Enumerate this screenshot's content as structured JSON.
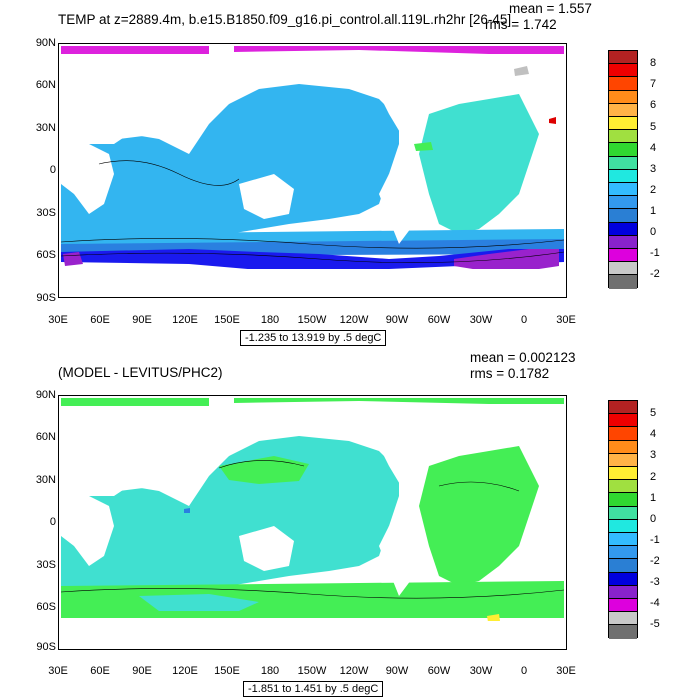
{
  "top": {
    "title": "TEMP at z=2889.4m, b.e15.B1850.f09_g16.pi_control.all.119L.rh2hr [26-45]",
    "mean_text": "mean = 1.557",
    "rms_text": "rms = 1.742",
    "range_text": "-1.235 to 13.919 by .5 degC",
    "colorbar": {
      "labels": [
        "8",
        "7",
        "6",
        "5",
        "4",
        "3",
        "2",
        "1",
        "0",
        "-1",
        "-2"
      ],
      "colors": [
        "#b22222",
        "#ee0000",
        "#ff4500",
        "#ff8c1a",
        "#ffb347",
        "#ffee33",
        "#a0e040",
        "#30d830",
        "#40e0a0",
        "#20e8e0",
        "#33bbff",
        "#3399ee",
        "#2a7fd4",
        "#0000dd",
        "#8822cc",
        "#dd00dd",
        "#c8c8c8",
        "#707070"
      ]
    }
  },
  "bottom": {
    "title": "(MODEL - LEVITUS/PHC2)",
    "mean_text": "mean = 0.002123",
    "rms_text": "rms = 0.1782",
    "range_text": "-1.851 to 1.451 by .5 degC",
    "colorbar": {
      "labels": [
        "5",
        "4",
        "3",
        "2",
        "1",
        "0",
        "-1",
        "-2",
        "-3",
        "-4",
        "-5"
      ],
      "colors": [
        "#b22222",
        "#ee0000",
        "#ff4500",
        "#ff8c1a",
        "#ffb347",
        "#ffee33",
        "#a0e040",
        "#30d830",
        "#40e0a0",
        "#20e8e0",
        "#33bbff",
        "#3399ee",
        "#2a7fd4",
        "#0000dd",
        "#8822cc",
        "#dd00dd",
        "#c8c8c8",
        "#707070"
      ]
    }
  },
  "axes": {
    "lat_labels": [
      "90N",
      "60N",
      "30N",
      "0",
      "30S",
      "60S",
      "90S"
    ],
    "lon_labels": [
      "30E",
      "60E",
      "90E",
      "120E",
      "150E",
      "180",
      "150W",
      "120W",
      "90W",
      "60W",
      "30W",
      "0",
      "30E"
    ]
  },
  "fill_colors": {
    "cyan_light": "#40e0d0",
    "blue_light": "#33b5f0",
    "blue_mid": "#2a80e0",
    "blue_dark": "#1a1aee",
    "purple": "#9922cc",
    "magenta": "#dd22dd",
    "green": "#44ee55",
    "gray": "#c0c0c0",
    "land": "#ffffff"
  }
}
